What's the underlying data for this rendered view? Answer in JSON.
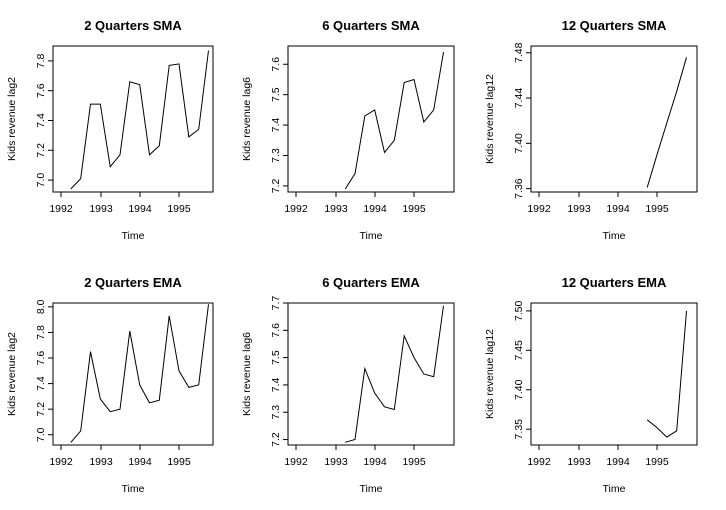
{
  "chart_data": [
    {
      "type": "line",
      "title": "2 Quarters SMA",
      "xlabel": "Time",
      "ylabel": "Kids revenue lag2",
      "xlim": [
        1991.8,
        1995.8
      ],
      "ylim": [
        6.92,
        7.9
      ],
      "x_ticks": [
        "1992",
        "1993",
        "1994",
        "1995"
      ],
      "y_ticks": [
        "7.0",
        "7.2",
        "7.4",
        "7.6",
        "7.8"
      ],
      "series": [
        {
          "x": [
            1992.25,
            1992.5,
            1992.75,
            1993.0,
            1993.25,
            1993.5,
            1993.75,
            1994.0,
            1994.25,
            1994.5,
            1994.75,
            1995.0,
            1995.25,
            1995.5,
            1995.75
          ],
          "values": [
            6.94,
            7.01,
            7.51,
            7.51,
            7.09,
            7.17,
            7.66,
            7.64,
            7.17,
            7.23,
            7.77,
            7.78,
            7.29,
            7.34,
            7.87
          ]
        }
      ]
    },
    {
      "type": "line",
      "title": "6 Quarters SMA",
      "xlabel": "Time",
      "ylabel": "Kids revenue lag6",
      "xlim": [
        1991.8,
        1995.8
      ],
      "ylim": [
        7.18,
        7.66
      ],
      "x_ticks": [
        "1992",
        "1993",
        "1994",
        "1995"
      ],
      "y_ticks": [
        "7.2",
        "7.3",
        "7.4",
        "7.5",
        "7.6"
      ],
      "series": [
        {
          "x": [
            1993.25,
            1993.5,
            1993.75,
            1994.0,
            1994.25,
            1994.5,
            1994.75,
            1995.0,
            1995.25,
            1995.5,
            1995.75
          ],
          "values": [
            7.19,
            7.24,
            7.43,
            7.45,
            7.31,
            7.35,
            7.54,
            7.55,
            7.41,
            7.45,
            7.64
          ]
        }
      ]
    },
    {
      "type": "line",
      "title": "12 Quarters SMA",
      "xlabel": "Time",
      "ylabel": "Kids revenue lag12",
      "xlim": [
        1991.8,
        1995.8
      ],
      "ylim": [
        7.357,
        7.486
      ],
      "x_ticks": [
        "1992",
        "1993",
        "1994",
        "1995"
      ],
      "y_ticks": [
        "7.36",
        "7.40",
        "7.44",
        "7.48"
      ],
      "series": [
        {
          "x": [
            1994.75,
            1995.0,
            1995.25,
            1995.5,
            1995.75
          ],
          "values": [
            7.361,
            7.39,
            7.418,
            7.446,
            7.476
          ]
        }
      ]
    },
    {
      "type": "line",
      "title": "2 Quarters EMA",
      "xlabel": "Time",
      "ylabel": "Kids revenue lag2",
      "xlim": [
        1991.8,
        1995.8
      ],
      "ylim": [
        6.92,
        8.03
      ],
      "x_ticks": [
        "1992",
        "1993",
        "1994",
        "1995"
      ],
      "y_ticks": [
        "7.0",
        "7.2",
        "7.4",
        "7.6",
        "7.8",
        "8.0"
      ],
      "series": [
        {
          "x": [
            1992.25,
            1992.5,
            1992.75,
            1993.0,
            1993.25,
            1993.5,
            1993.75,
            1994.0,
            1994.25,
            1994.5,
            1994.75,
            1995.0,
            1995.25,
            1995.5,
            1995.75
          ],
          "values": [
            6.94,
            7.03,
            7.65,
            7.28,
            7.18,
            7.2,
            7.81,
            7.39,
            7.25,
            7.27,
            7.93,
            7.5,
            7.37,
            7.39,
            8.02
          ]
        }
      ]
    },
    {
      "type": "line",
      "title": "6 Quarters EMA",
      "xlabel": "Time",
      "ylabel": "Kids revenue lag6",
      "xlim": [
        1991.8,
        1995.8
      ],
      "ylim": [
        7.18,
        7.7
      ],
      "x_ticks": [
        "1992",
        "1993",
        "1994",
        "1995"
      ],
      "y_ticks": [
        "7.2",
        "7.3",
        "7.4",
        "7.5",
        "7.6",
        "7.7"
      ],
      "series": [
        {
          "x": [
            1993.25,
            1993.5,
            1993.75,
            1994.0,
            1994.25,
            1994.5,
            1994.75,
            1995.0,
            1995.25,
            1995.5,
            1995.75
          ],
          "values": [
            7.19,
            7.2,
            7.46,
            7.37,
            7.32,
            7.31,
            7.58,
            7.5,
            7.44,
            7.43,
            7.69
          ]
        }
      ]
    },
    {
      "type": "line",
      "title": "12 Quarters EMA",
      "xlabel": "Time",
      "ylabel": "Kids revenue lag12",
      "xlim": [
        1991.8,
        1995.8
      ],
      "ylim": [
        7.33,
        7.51
      ],
      "x_ticks": [
        "1992",
        "1993",
        "1994",
        "1995"
      ],
      "y_ticks": [
        "7.35",
        "7.40",
        "7.45",
        "7.50"
      ],
      "series": [
        {
          "x": [
            1994.75,
            1995.0,
            1995.25,
            1995.5,
            1995.75
          ],
          "values": [
            7.362,
            7.352,
            7.34,
            7.348,
            7.5
          ]
        }
      ]
    }
  ]
}
